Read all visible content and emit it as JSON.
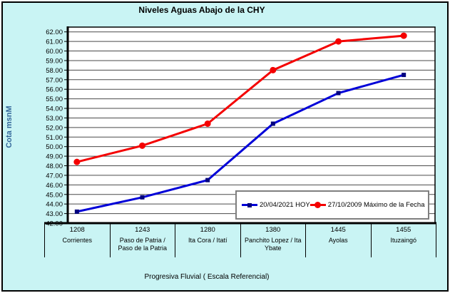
{
  "window": {
    "title": "Niveles Aguas Abajo de la CHY"
  },
  "colors": {
    "chart_background": "#C9F4F4",
    "plot_background": "#FFFFFF",
    "gridline": "#4A4A4A",
    "axis": "#000000",
    "y_axis_title": "#336699",
    "legend_border": "#7F7F7F",
    "series_hoy_line": "#0000D8",
    "series_hoy_marker": "#00007E",
    "series_max_line": "#F40000",
    "series_max_marker": "#F40000"
  },
  "chart_data": {
    "type": "line",
    "title": "Niveles Aguas Abajo de la CHY",
    "xlabel": "Progresiva Fluvial ( Escala Referencial)",
    "ylabel": "Cota msnM",
    "ylim": [
      42,
      62.5
    ],
    "ytick_min": 42,
    "ytick_max": 62,
    "ytick_step": 1,
    "ytick_decimals": 2,
    "grid": true,
    "legend_position": "inside-bottom-right",
    "categories": [
      {
        "km": "1208",
        "name": "Corrientes"
      },
      {
        "km": "1243",
        "name": "Paso de Patria / Paso de la Patria"
      },
      {
        "km": "1280",
        "name": "Ita Cora / Itatí"
      },
      {
        "km": "1380",
        "name": "Panchito Lopez / Ita Ybate"
      },
      {
        "km": "1445",
        "name": "Ayolas"
      },
      {
        "km": "1455",
        "name": "Ituzaingó"
      }
    ],
    "series": [
      {
        "name": "20/04/2021 HOY",
        "marker": "square",
        "line_color": "#0000D8",
        "marker_color": "#00007E",
        "values": [
          43.2,
          44.7,
          46.5,
          52.4,
          55.6,
          57.5
        ]
      },
      {
        "name": "27/10/2009 Máximo de la Fecha",
        "marker": "circle",
        "line_color": "#F40000",
        "marker_color": "#F40000",
        "values": [
          48.4,
          50.1,
          52.4,
          58.0,
          61.0,
          61.6
        ]
      }
    ]
  }
}
